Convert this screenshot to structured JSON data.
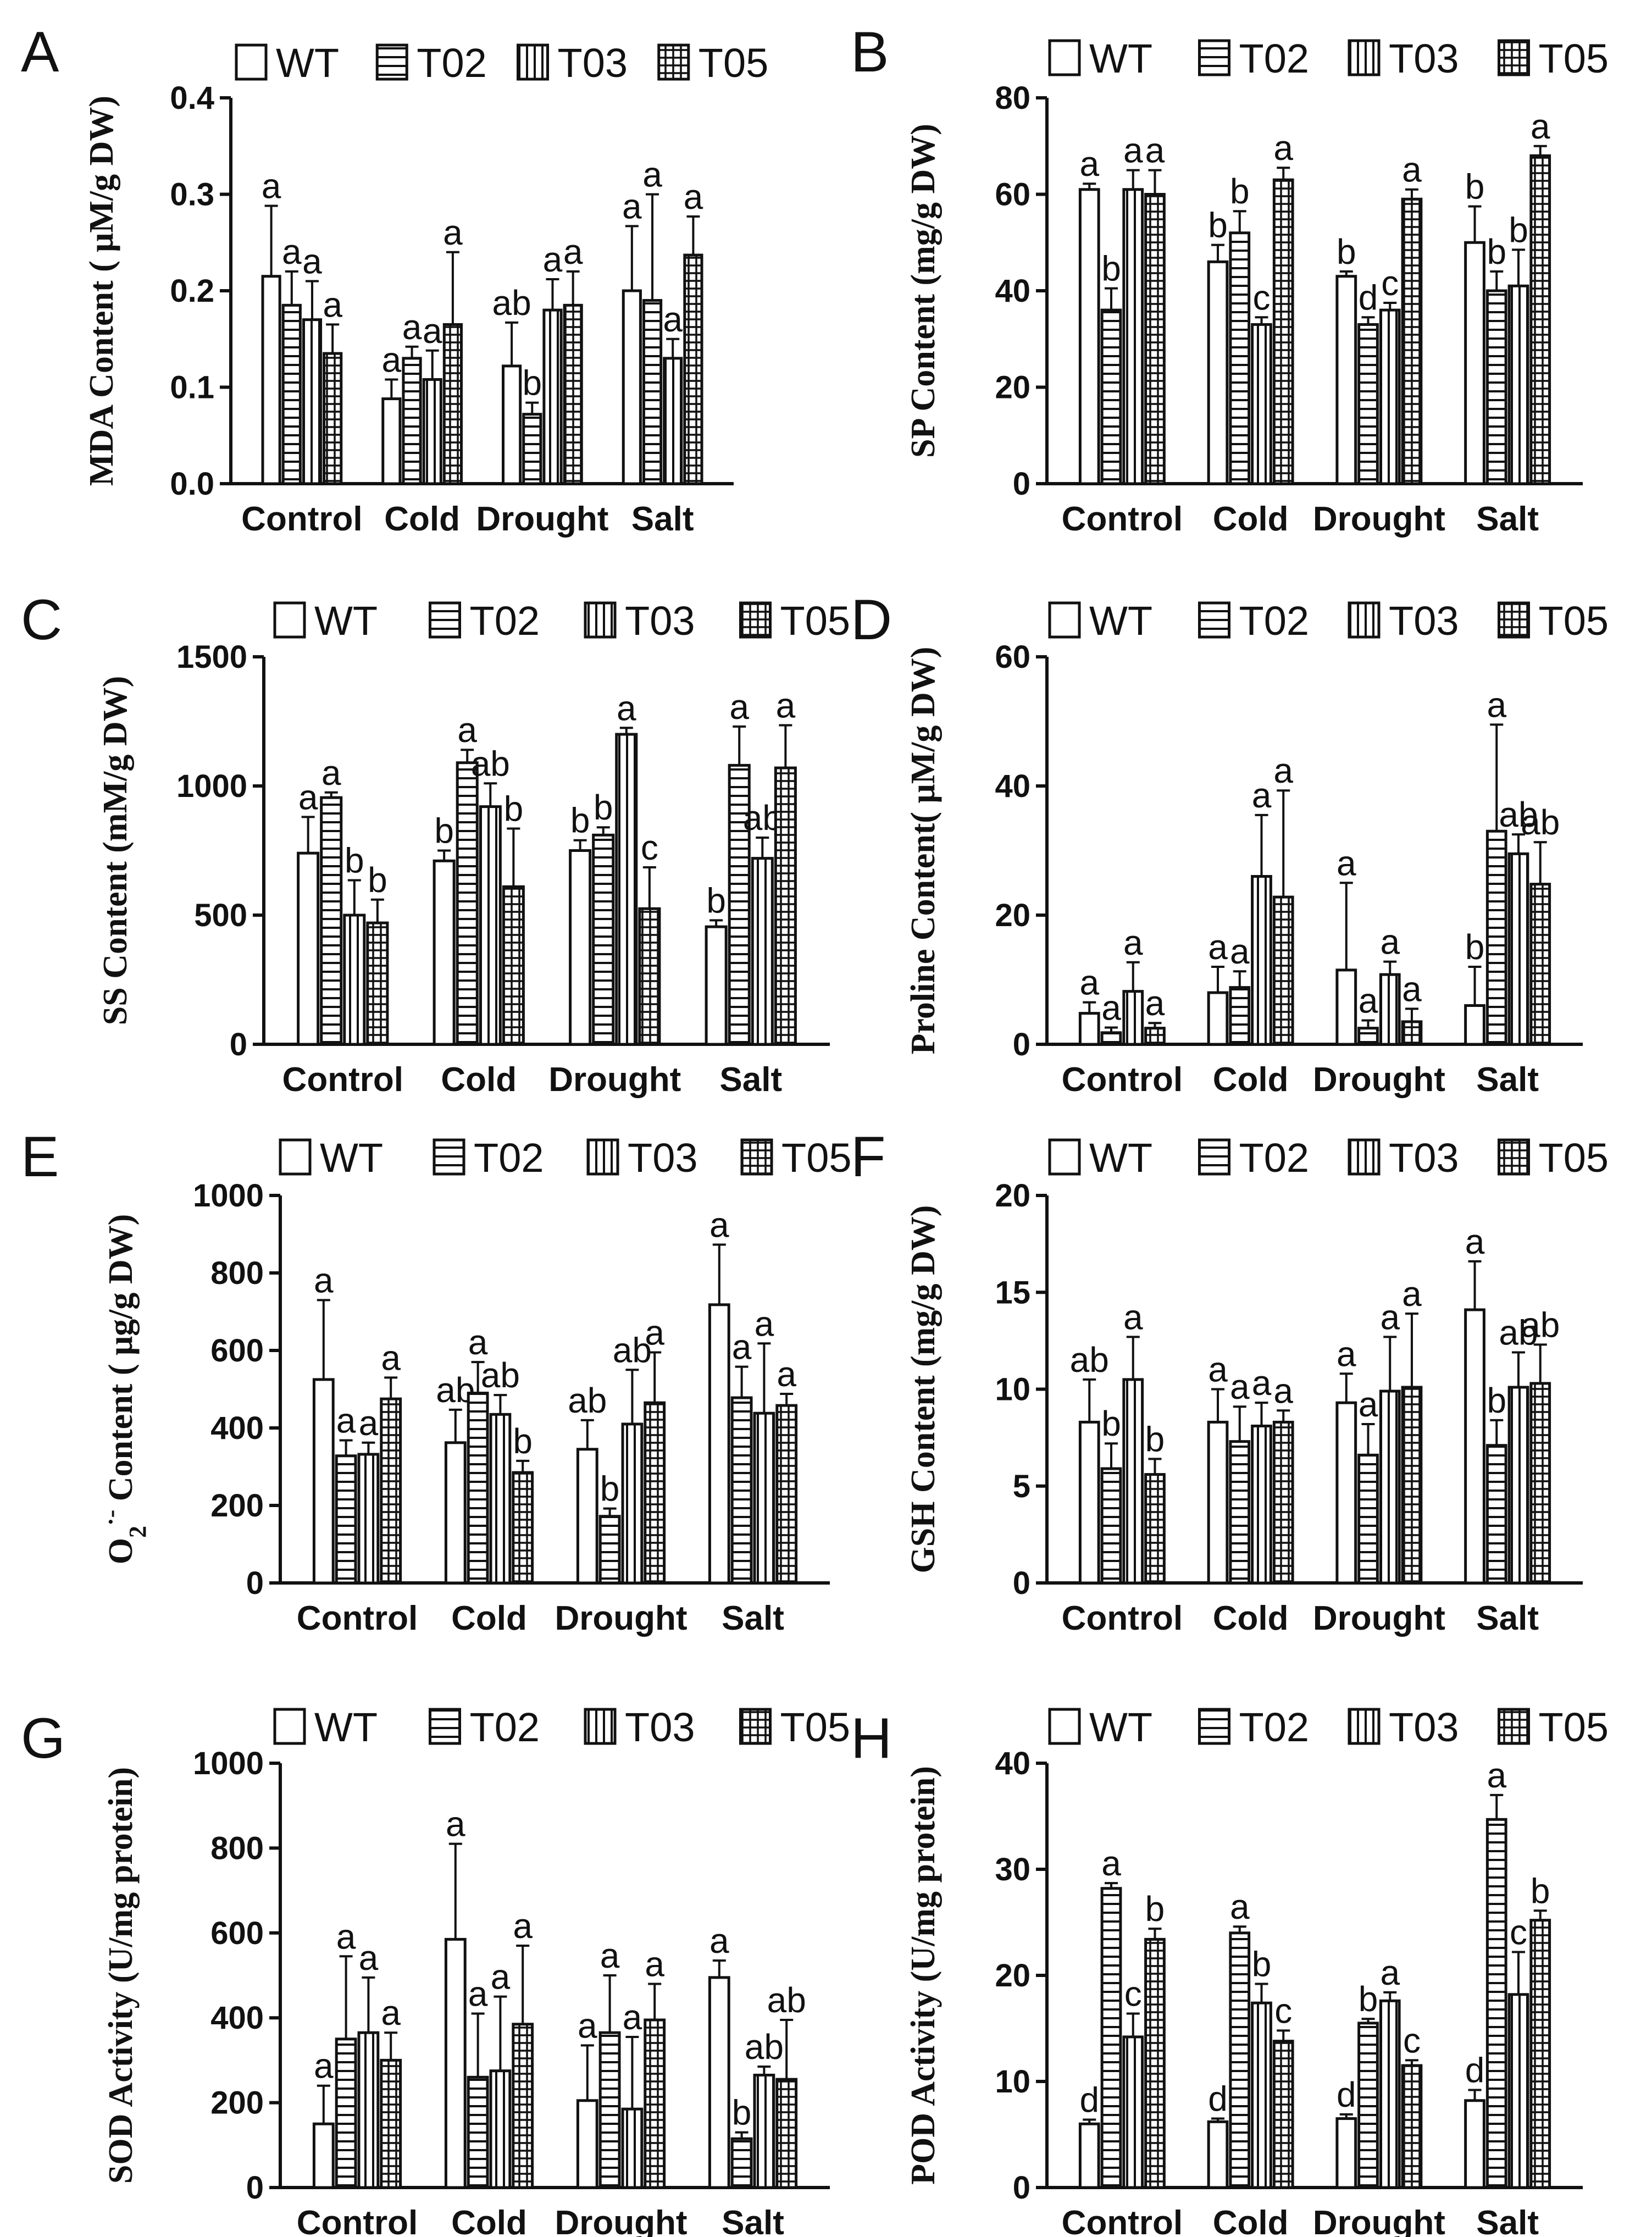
{
  "figure": {
    "series": [
      "WT",
      "T02",
      "T03",
      "T05"
    ],
    "categories": [
      "Control",
      "Cold",
      "Drought",
      "Salt"
    ]
  },
  "chart_data": [
    {
      "panel": "A",
      "type": "bar",
      "ylabel": "MDA Content ( μM/g DW)",
      "ylim": [
        0,
        0.4
      ],
      "yticks": [
        "0.0",
        "0.1",
        "0.2",
        "0.3",
        "0.4"
      ],
      "categories": [
        "Control",
        "Cold",
        "Drought",
        "Salt"
      ],
      "series": [
        {
          "name": "WT",
          "values": [
            0.215,
            0.088,
            0.122,
            0.2
          ],
          "errors": [
            0.073,
            0.02,
            0.045,
            0.067
          ],
          "labels": [
            "a",
            "a",
            "ab",
            "a"
          ]
        },
        {
          "name": "T02",
          "values": [
            0.185,
            0.13,
            0.072,
            0.19
          ],
          "errors": [
            0.035,
            0.012,
            0.012,
            0.11
          ],
          "labels": [
            "a",
            "a",
            "b",
            "a"
          ]
        },
        {
          "name": "T03",
          "values": [
            0.17,
            0.108,
            0.18,
            0.13
          ],
          "errors": [
            0.04,
            0.03,
            0.032,
            0.02
          ],
          "labels": [
            "a",
            "a",
            "a",
            "a"
          ]
        },
        {
          "name": "T05",
          "values": [
            0.135,
            0.165,
            0.185,
            0.237
          ],
          "errors": [
            0.03,
            0.075,
            0.035,
            0.04
          ],
          "labels": [
            "a",
            "a",
            "a",
            "a"
          ]
        }
      ]
    },
    {
      "panel": "B",
      "type": "bar",
      "ylabel": "SP Content (mg/g DW)",
      "ylim": [
        0,
        80
      ],
      "yticks": [
        "0",
        "20",
        "40",
        "60",
        "80"
      ],
      "categories": [
        "Control",
        "Cold",
        "Drought",
        "Salt"
      ],
      "series": [
        {
          "name": "WT",
          "values": [
            61,
            46,
            43,
            50
          ],
          "errors": [
            1.2,
            3.5,
            1.0,
            7.5
          ],
          "labels": [
            "a",
            "b",
            "b",
            "b"
          ]
        },
        {
          "name": "T02",
          "values": [
            36,
            52,
            33,
            40
          ],
          "errors": [
            4.5,
            4.5,
            1.5,
            4.0
          ],
          "labels": [
            "b",
            "b",
            "d",
            "b"
          ]
        },
        {
          "name": "T03",
          "values": [
            61,
            33,
            36,
            41
          ],
          "errors": [
            4.0,
            1.5,
            1.5,
            7.5
          ],
          "labels": [
            "a",
            "c",
            "c",
            "b"
          ]
        },
        {
          "name": "T05",
          "values": [
            60,
            63,
            59,
            68
          ],
          "errors": [
            5.0,
            2.5,
            2.0,
            2.0
          ],
          "labels": [
            "a",
            "a",
            "a",
            "a"
          ]
        }
      ]
    },
    {
      "panel": "C",
      "type": "bar",
      "ylabel": "SS Content (mM/g DW)",
      "ylim": [
        0,
        1500
      ],
      "yticks": [
        "0",
        "500",
        "1000",
        "1500"
      ],
      "categories": [
        "Control",
        "Cold",
        "Drought",
        "Salt"
      ],
      "series": [
        {
          "name": "WT",
          "values": [
            740,
            710,
            750,
            455
          ],
          "errors": [
            140,
            40,
            40,
            25
          ],
          "labels": [
            "a",
            "b",
            "b",
            "b"
          ]
        },
        {
          "name": "T02",
          "values": [
            955,
            1090,
            810,
            1080
          ],
          "errors": [
            20,
            50,
            30,
            150
          ],
          "labels": [
            "a",
            "a",
            "b",
            "a"
          ]
        },
        {
          "name": "T03",
          "values": [
            500,
            920,
            1200,
            720
          ],
          "errors": [
            135,
            90,
            25,
            80
          ],
          "labels": [
            "b",
            "ab",
            "a",
            "ab"
          ]
        },
        {
          "name": "T05",
          "values": [
            470,
            610,
            525,
            1070
          ],
          "errors": [
            90,
            225,
            160,
            165
          ],
          "labels": [
            "b",
            "b",
            "c",
            "a"
          ]
        }
      ]
    },
    {
      "panel": "D",
      "type": "bar",
      "ylabel": "Proline Content( μM/g DW)",
      "ylim": [
        0,
        60
      ],
      "yticks": [
        "0",
        "20",
        "40",
        "60"
      ],
      "categories": [
        "Control",
        "Cold",
        "Drought",
        "Salt"
      ],
      "series": [
        {
          "name": "WT",
          "values": [
            4.8,
            8.0,
            11.5,
            6.0
          ],
          "errors": [
            1.7,
            4.0,
            13.5,
            6.0
          ],
          "labels": [
            "a",
            "a",
            "a",
            "b"
          ]
        },
        {
          "name": "T02",
          "values": [
            1.8,
            8.8,
            2.5,
            33.0
          ],
          "errors": [
            0.8,
            2.5,
            1.2,
            16.5
          ],
          "labels": [
            "a",
            "a",
            "a",
            "a"
          ]
        },
        {
          "name": "T03",
          "values": [
            8.2,
            26.0,
            10.8,
            29.5
          ],
          "errors": [
            4.5,
            9.5,
            2.0,
            3.0
          ],
          "labels": [
            "a",
            "a",
            "a",
            "ab"
          ]
        },
        {
          "name": "T05",
          "values": [
            2.5,
            22.8,
            3.5,
            24.8
          ],
          "errors": [
            0.8,
            16.5,
            2.0,
            6.5
          ],
          "labels": [
            "a",
            "a",
            "a",
            "ab"
          ]
        }
      ]
    },
    {
      "panel": "E",
      "type": "bar",
      "ylabel": "O2•- Content ( μg/g DW)",
      "ylabel_parts": {
        "base": "O",
        "sub": "2",
        "sup": "·-",
        "rest": " Content ( μg/g DW)"
      },
      "ylim": [
        0,
        1000
      ],
      "yticks": [
        "0",
        "200",
        "400",
        "600",
        "800",
        "1000"
      ],
      "categories": [
        "Control",
        "Cold",
        "Drought",
        "Salt"
      ],
      "series": [
        {
          "name": "WT",
          "values": [
            525,
            362,
            345,
            718
          ],
          "errors": [
            205,
            85,
            75,
            155
          ],
          "labels": [
            "a",
            "ab",
            "ab",
            "a"
          ]
        },
        {
          "name": "T02",
          "values": [
            328,
            490,
            172,
            478
          ],
          "errors": [
            40,
            80,
            20,
            80
          ],
          "labels": [
            "a",
            "a",
            "b",
            "a"
          ]
        },
        {
          "name": "T03",
          "values": [
            332,
            435,
            410,
            438
          ],
          "errors": [
            30,
            50,
            140,
            180
          ],
          "labels": [
            "a",
            "ab",
            "ab",
            "a"
          ]
        },
        {
          "name": "T05",
          "values": [
            475,
            285,
            465,
            458
          ],
          "errors": [
            55,
            30,
            130,
            30
          ],
          "labels": [
            "a",
            "b",
            "a",
            "a"
          ]
        }
      ]
    },
    {
      "panel": "F",
      "type": "bar",
      "ylabel": "GSH Content (mg/g DW)",
      "ylim": [
        0,
        20
      ],
      "yticks": [
        "0",
        "5",
        "10",
        "15",
        "20"
      ],
      "categories": [
        "Control",
        "Cold",
        "Drought",
        "Salt"
      ],
      "series": [
        {
          "name": "WT",
          "values": [
            8.3,
            8.3,
            9.3,
            14.1
          ],
          "errors": [
            2.2,
            1.7,
            1.5,
            2.5
          ],
          "labels": [
            "ab",
            "a",
            "a",
            "a"
          ]
        },
        {
          "name": "T02",
          "values": [
            5.9,
            7.3,
            6.6,
            7.1
          ],
          "errors": [
            1.3,
            1.8,
            1.6,
            1.3
          ],
          "labels": [
            "b",
            "a",
            "a",
            "b"
          ]
        },
        {
          "name": "T03",
          "values": [
            10.5,
            8.1,
            9.9,
            10.1
          ],
          "errors": [
            2.2,
            1.2,
            2.8,
            1.8
          ],
          "labels": [
            "a",
            "a",
            "a",
            "ab"
          ]
        },
        {
          "name": "T05",
          "values": [
            5.6,
            8.3,
            10.1,
            10.3
          ],
          "errors": [
            0.8,
            0.6,
            3.8,
            2.0
          ],
          "labels": [
            "b",
            "a",
            "a",
            "ab"
          ]
        }
      ]
    },
    {
      "panel": "G",
      "type": "bar",
      "ylabel": "SOD Activity (U/mg protein)",
      "ylim": [
        0,
        1000
      ],
      "yticks": [
        "0",
        "200",
        "400",
        "600",
        "800",
        "1000"
      ],
      "categories": [
        "Control",
        "Cold",
        "Drought",
        "Salt"
      ],
      "series": [
        {
          "name": "WT",
          "values": [
            150,
            585,
            205,
            495
          ],
          "errors": [
            90,
            225,
            130,
            40
          ],
          "labels": [
            "a",
            "a",
            "a",
            "a"
          ]
        },
        {
          "name": "T02",
          "values": [
            350,
            260,
            365,
            115
          ],
          "errors": [
            195,
            150,
            135,
            15
          ],
          "labels": [
            "a",
            "a",
            "a",
            "b"
          ]
        },
        {
          "name": "T03",
          "values": [
            365,
            275,
            185,
            265
          ],
          "errors": [
            130,
            175,
            170,
            20
          ],
          "labels": [
            "a",
            "a",
            "a",
            "ab"
          ]
        },
        {
          "name": "T05",
          "values": [
            300,
            385,
            395,
            255
          ],
          "errors": [
            65,
            185,
            85,
            140
          ],
          "labels": [
            "a",
            "a",
            "a",
            "ab"
          ]
        }
      ]
    },
    {
      "panel": "H",
      "type": "bar",
      "ylabel": "POD Activity (U/mg protein)",
      "ylim": [
        0,
        40
      ],
      "yticks": [
        "0",
        "10",
        "20",
        "30",
        "40"
      ],
      "categories": [
        "Control",
        "Cold",
        "Drought",
        "Salt"
      ],
      "series": [
        {
          "name": "WT",
          "values": [
            6.0,
            6.2,
            6.5,
            8.2
          ],
          "errors": [
            0.4,
            0.3,
            0.4,
            1.0
          ],
          "labels": [
            "d",
            "d",
            "d",
            "d"
          ]
        },
        {
          "name": "T02",
          "values": [
            28.2,
            24.0,
            15.5,
            34.7
          ],
          "errors": [
            0.5,
            0.6,
            0.4,
            2.3
          ],
          "labels": [
            "a",
            "a",
            "b",
            "a"
          ]
        },
        {
          "name": "T03",
          "values": [
            14.2,
            17.4,
            17.6,
            18.2
          ],
          "errors": [
            2.2,
            1.8,
            0.8,
            4.0
          ],
          "labels": [
            "c",
            "b",
            "a",
            "c"
          ]
        },
        {
          "name": "T05",
          "values": [
            23.4,
            13.8,
            11.5,
            25.2
          ],
          "errors": [
            1.0,
            1.0,
            0.5,
            0.9
          ],
          "labels": [
            "b",
            "c",
            "c",
            "b"
          ]
        }
      ]
    }
  ]
}
